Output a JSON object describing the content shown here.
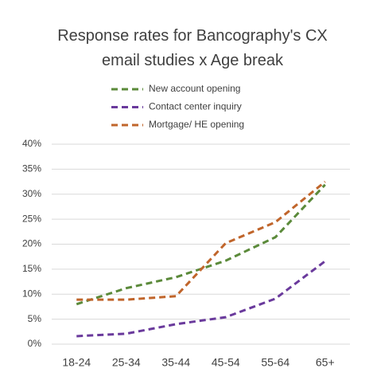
{
  "chart_data": {
    "type": "line",
    "title": "Response rates for Bancography's CX email studies x Age break",
    "categories": [
      "18-24",
      "25-34",
      "35-44",
      "45-54",
      "55-64",
      "65+"
    ],
    "series": [
      {
        "name": "New account opening",
        "color": "#5b8a3a",
        "values": [
          8.0,
          11.2,
          13.4,
          16.7,
          21.4,
          31.9
        ]
      },
      {
        "name": "Contact center inquiry",
        "color": "#6a3a9c",
        "values": [
          1.6,
          2.1,
          4.0,
          5.4,
          9.1,
          16.6
        ]
      },
      {
        "name": "Mortgage/ HE opening",
        "color": "#c0652b",
        "values": [
          8.9,
          8.9,
          9.6,
          20.2,
          24.4,
          32.5
        ]
      }
    ],
    "ylim": [
      0,
      40
    ],
    "yticks": [
      {
        "value": 0,
        "label": "0%"
      },
      {
        "value": 5,
        "label": "5%"
      },
      {
        "value": 10,
        "label": "10%"
      },
      {
        "value": 15,
        "label": "15%"
      },
      {
        "value": 20,
        "label": "20%"
      },
      {
        "value": 25,
        "label": "25%"
      },
      {
        "value": 30,
        "label": "30%"
      },
      {
        "value": 35,
        "label": "35%"
      },
      {
        "value": 40,
        "label": "40%"
      }
    ],
    "grid": true,
    "legend": "top"
  }
}
